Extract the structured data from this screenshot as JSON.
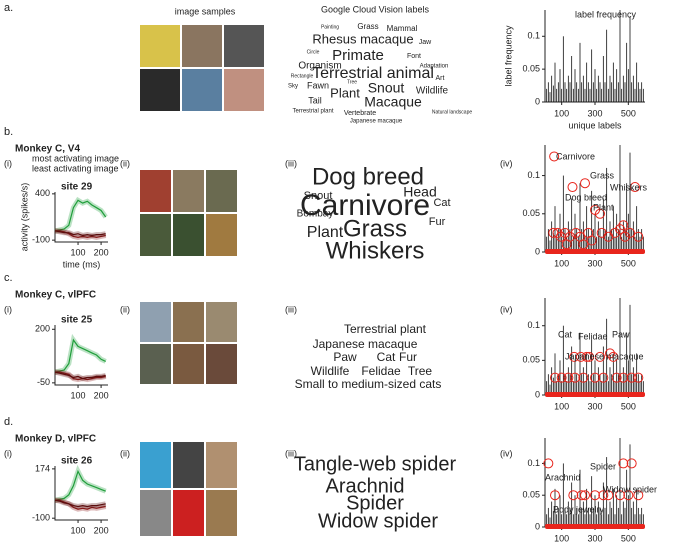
{
  "panel_a": {
    "letter": "a.",
    "images_title": "image samples",
    "cloud_title": "Google Cloud Vision labels",
    "words": [
      {
        "text": "Painting",
        "color": "#888"
      },
      {
        "text": "Grass",
        "color": "#777"
      },
      {
        "text": "Mammal",
        "color": "#777"
      },
      {
        "text": "Rhesus macaque",
        "color": "#b5489a"
      },
      {
        "text": "Jaw",
        "color": "#777"
      },
      {
        "text": "Circle",
        "color": "#888"
      },
      {
        "text": "Primate",
        "color": "#b5489a"
      },
      {
        "text": "Font",
        "color": "#777"
      },
      {
        "text": "Organism",
        "color": "#777"
      },
      {
        "text": "Adaptation",
        "color": "#888"
      },
      {
        "text": "Rectangle",
        "color": "#888"
      },
      {
        "text": "Terrestrial animal",
        "color": "#b5489a"
      },
      {
        "text": "Art",
        "color": "#777"
      },
      {
        "text": "Sky",
        "color": "#888"
      },
      {
        "text": "Fawn",
        "color": "#777"
      },
      {
        "text": "Plant",
        "color": "#777"
      },
      {
        "text": "Snout",
        "color": "#b5489a"
      },
      {
        "text": "Wildlife",
        "color": "#777"
      },
      {
        "text": "Tail",
        "color": "#777"
      },
      {
        "text": "Macaque",
        "color": "#b5489a"
      },
      {
        "text": "Terrestrial plant",
        "color": "#888"
      },
      {
        "text": "Vertebrate",
        "color": "#888"
      },
      {
        "text": "Japanese macaque",
        "color": "#888"
      },
      {
        "text": "Natural landscape",
        "color": "#999"
      },
      {
        "text": "Tree",
        "color": "#888"
      }
    ],
    "chart": {
      "type": "bar",
      "title": "label frequency",
      "ylabel": "label frequency",
      "xlabel": "unique labels",
      "color": "#111",
      "x": [
        10,
        20,
        30,
        40,
        50,
        60,
        70,
        80,
        90,
        100,
        110,
        120,
        130,
        140,
        150,
        160,
        170,
        180,
        190,
        200,
        210,
        220,
        230,
        240,
        250,
        260,
        270,
        280,
        290,
        300,
        310,
        320,
        330,
        340,
        350,
        360,
        370,
        380,
        390,
        400,
        410,
        420,
        430,
        440,
        450,
        460,
        470,
        480,
        490,
        500,
        510,
        520,
        530,
        540,
        550,
        560,
        570,
        580,
        590
      ],
      "values": [
        0.02,
        0.03,
        0.015,
        0.04,
        0.025,
        0.06,
        0.02,
        0.03,
        0.05,
        0.02,
        0.1,
        0.03,
        0.02,
        0.04,
        0.03,
        0.07,
        0.02,
        0.05,
        0.03,
        0.02,
        0.09,
        0.03,
        0.04,
        0.02,
        0.06,
        0.03,
        0.02,
        0.08,
        0.03,
        0.05,
        0.02,
        0.04,
        0.03,
        0.02,
        0.07,
        0.03,
        0.11,
        0.02,
        0.04,
        0.03,
        0.06,
        0.02,
        0.05,
        0.03,
        0.14,
        0.02,
        0.04,
        0.03,
        0.09,
        0.05,
        0.13,
        0.03,
        0.04,
        0.02,
        0.06,
        0.03,
        0.02,
        0.03,
        0.02
      ],
      "xlim": [
        0,
        600
      ],
      "ylim": [
        0,
        0.14
      ],
      "yticks": [
        0,
        0.05,
        0.1
      ],
      "xticks": [
        100,
        300,
        500
      ]
    }
  },
  "panels": [
    {
      "letter": "b.",
      "monkey": "Monkey C, V4",
      "sub_i": "(i)",
      "sub_ii": "(ii)",
      "sub_iii": "(iii)",
      "sub_iv": "(iv)",
      "response": {
        "type": "line",
        "site": "site 29",
        "ylabel": "activity (spikes/s)",
        "xlabel": "time (ms)",
        "x": [
          0,
          20,
          40,
          60,
          80,
          100,
          120,
          140,
          160,
          180,
          200,
          220
        ],
        "xlim": [
          0,
          230
        ],
        "ylim": [
          -120,
          420
        ],
        "yticks": [
          400,
          -100
        ],
        "xticks": [
          100,
          200
        ],
        "series": [
          {
            "name": "most activating image",
            "color": "#1f9e3a",
            "values": [
              0,
              10,
              20,
              60,
              250,
              330,
              300,
              320,
              280,
              250,
              220,
              150
            ]
          },
          {
            "name": "least activating image",
            "color": "#8b1a1a",
            "values": [
              0,
              0,
              -10,
              -30,
              -60,
              -70,
              -60,
              -70,
              -60,
              -70,
              -60,
              -50
            ]
          },
          {
            "color": "#5a0d0d",
            "values": [
              0,
              -10,
              -20,
              -20,
              -40,
              -30,
              -50,
              -40,
              -50,
              -40,
              -40,
              -30
            ]
          }
        ]
      },
      "words": [
        {
          "text": "Dog breed",
          "color": "#b5489a"
        },
        {
          "text": "Snout",
          "color": "#777"
        },
        {
          "text": "Head",
          "color": "#777"
        },
        {
          "text": "Cat",
          "color": "#777"
        },
        {
          "text": "Bombay",
          "color": "#777"
        },
        {
          "text": "Carnivore",
          "color": "#b5489a"
        },
        {
          "text": "Fur",
          "color": "#777"
        },
        {
          "text": "Plant",
          "color": "#777"
        },
        {
          "text": "Grass",
          "color": "#b5489a"
        },
        {
          "text": "Whiskers",
          "color": "#b5489a"
        }
      ],
      "frequency": {
        "type": "scatter",
        "xlim": [
          0,
          600
        ],
        "ylim": [
          0,
          0.14
        ],
        "yticks": [
          0,
          0.05,
          0.1
        ],
        "xticks": [
          100,
          300,
          500
        ],
        "color": "#e8251c",
        "x": [
          55,
          165,
          240,
          540,
          300,
          330,
          50,
          75,
          95,
          120,
          150,
          185,
          210,
          260,
          280,
          340,
          380,
          420,
          450,
          480,
          510,
          560,
          130,
          230,
          470
        ],
        "y": [
          0.125,
          0.085,
          0.09,
          0.085,
          0.055,
          0.05,
          0.025,
          0.025,
          0.02,
          0.025,
          0.02,
          0.025,
          0.02,
          0.025,
          0.015,
          0.025,
          0.02,
          0.025,
          0.03,
          0.02,
          0.025,
          0.02,
          0.01,
          0.01,
          0.035
        ],
        "annotations": [
          {
            "text": "Carnivore",
            "color": "#3050c0"
          },
          {
            "text": "Grass",
            "color": "#e8251c"
          },
          {
            "text": "Whiskers",
            "color": "#111"
          },
          {
            "text": "Dog breed",
            "color": "#1f9e3a"
          },
          {
            "text": "Plant",
            "color": "#b5489a"
          }
        ]
      }
    },
    {
      "letter": "c.",
      "monkey": "Monkey C, vlPFC",
      "sub_i": "(i)",
      "sub_ii": "(ii)",
      "sub_iii": "(iii)",
      "sub_iv": "(iv)",
      "response": {
        "type": "line",
        "site": "site 25",
        "x": [
          0,
          20,
          40,
          60,
          80,
          100,
          120,
          140,
          160,
          180,
          200,
          220
        ],
        "xlim": [
          0,
          230
        ],
        "ylim": [
          -60,
          220
        ],
        "yticks": [
          200,
          -50
        ],
        "xticks": [
          100,
          200
        ],
        "series": [
          {
            "color": "#1f9e3a",
            "values": [
              0,
              5,
              10,
              40,
              150,
              120,
              110,
              100,
              90,
              80,
              60,
              50
            ]
          },
          {
            "color": "#8b1a1a",
            "values": [
              0,
              0,
              -5,
              -10,
              -30,
              -35,
              -30,
              -35,
              -30,
              -25,
              -25,
              -20
            ]
          },
          {
            "color": "#5a0d0d",
            "values": [
              0,
              -5,
              -10,
              -15,
              -25,
              -20,
              -30,
              -25,
              -25,
              -20,
              -20,
              -15
            ]
          }
        ]
      },
      "words": [
        {
          "text": "Terrestrial plant",
          "color": "#666"
        },
        {
          "text": "Japanese macaque",
          "color": "#b5489a"
        },
        {
          "text": "Paw",
          "color": "#b5489a"
        },
        {
          "text": "Cat",
          "color": "#b5489a"
        },
        {
          "text": "Fur",
          "color": "#b5489a"
        },
        {
          "text": "Wildlife",
          "color": "#666"
        },
        {
          "text": "Felidae",
          "color": "#b5489a"
        },
        {
          "text": "Tree",
          "color": "#666"
        },
        {
          "text": "Small to medium-sized cats",
          "color": "#666"
        }
      ],
      "frequency": {
        "type": "scatter",
        "xlim": [
          0,
          600
        ],
        "ylim": [
          0,
          0.14
        ],
        "yticks": [
          0,
          0.05,
          0.1
        ],
        "xticks": [
          100,
          300,
          500
        ],
        "color": "#e8251c",
        "x": [
          250,
          410,
          175,
          215,
          265,
          330,
          390,
          60,
          100,
          140,
          180,
          230,
          300,
          350,
          430,
          470,
          520,
          560
        ],
        "y": [
          0.055,
          0.055,
          0.055,
          0.055,
          0.055,
          0.055,
          0.06,
          0.025,
          0.025,
          0.025,
          0.025,
          0.025,
          0.025,
          0.025,
          0.025,
          0.025,
          0.025,
          0.025
        ],
        "annotations": [
          {
            "text": "Cat",
            "color": "#3050c0"
          },
          {
            "text": "Felidae",
            "color": "#e8251c"
          },
          {
            "text": "Paw",
            "color": "#e8408a"
          },
          {
            "text": "Japanese macaque",
            "color": "#111"
          }
        ]
      }
    },
    {
      "letter": "d.",
      "monkey": "Monkey D, vlPFC",
      "sub_i": "(i)",
      "sub_ii": "(ii)",
      "sub_iii": "(iii)",
      "sub_iv": "(iv)",
      "response": {
        "type": "line",
        "site": "site 26",
        "x": [
          0,
          20,
          40,
          60,
          80,
          100,
          120,
          140,
          160,
          180,
          200,
          220
        ],
        "xlim": [
          0,
          230
        ],
        "ylim": [
          -110,
          190
        ],
        "yticks": [
          174,
          -100
        ],
        "xticks": [
          100,
          200
        ],
        "series": [
          {
            "color": "#1f9e3a",
            "values": [
              0,
              5,
              10,
              30,
              80,
              160,
              110,
              90,
              80,
              70,
              60,
              50
            ]
          },
          {
            "color": "#8b1a1a",
            "values": [
              0,
              0,
              -10,
              -20,
              -40,
              -50,
              -45,
              -50,
              -40,
              -45,
              -40,
              -35
            ]
          },
          {
            "color": "#5a0d0d",
            "values": [
              0,
              -5,
              -15,
              -20,
              -30,
              -35,
              -30,
              -35,
              -30,
              -30,
              -25,
              -20
            ]
          }
        ]
      },
      "words": [
        {
          "text": "Tangle-web spider",
          "color": "#b5489a"
        },
        {
          "text": "Arachnid",
          "color": "#b5489a"
        },
        {
          "text": "Spider",
          "color": "#b5489a"
        },
        {
          "text": "Widow spider",
          "color": "#b5489a"
        }
      ],
      "frequency": {
        "type": "scatter",
        "xlim": [
          0,
          600
        ],
        "ylim": [
          0,
          0.14
        ],
        "yticks": [
          0,
          0.05,
          0.1
        ],
        "xticks": [
          100,
          300,
          500
        ],
        "color": "#e8251c",
        "x": [
          20,
          470,
          520,
          60,
          170,
          220,
          240,
          300,
          350,
          380,
          450,
          500,
          560
        ],
        "y": [
          0.1,
          0.1,
          0.1,
          0.05,
          0.05,
          0.05,
          0.05,
          0.05,
          0.05,
          0.05,
          0.05,
          0.05,
          0.05
        ],
        "annotations": [
          {
            "text": "Arachnid",
            "color": "#3050c0"
          },
          {
            "text": "Spider",
            "color": "#e8251c"
          },
          {
            "text": "Widow spider",
            "color": "#111"
          },
          {
            "text": "Body jewelry",
            "color": "#e8408a"
          }
        ]
      }
    }
  ]
}
